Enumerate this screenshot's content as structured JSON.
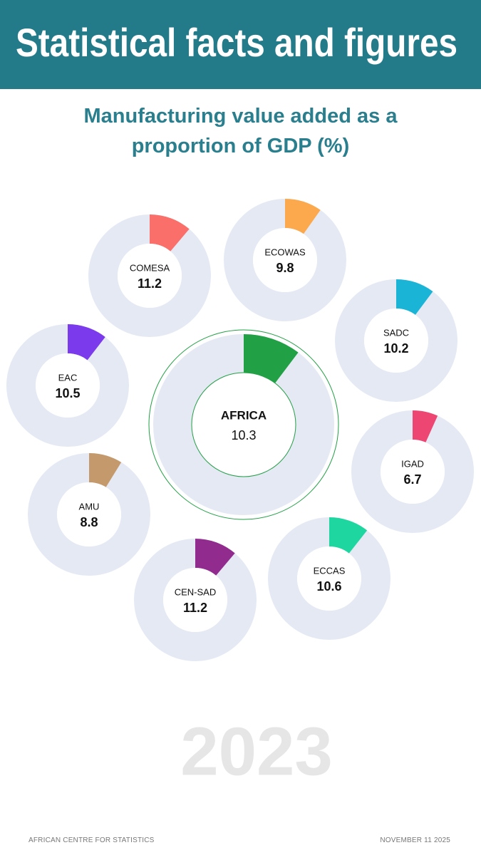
{
  "header": {
    "title": "Statistical facts and figures"
  },
  "chart_data": {
    "type": "donut",
    "subtitle": "Manufacturing value added as a proportion of GDP (%)",
    "categories": [
      "AFRICA",
      "COMESA",
      "ECOWAS",
      "SADC",
      "EAC",
      "IGAD",
      "AMU",
      "ECCAS",
      "CEN-SAD"
    ],
    "values": [
      10.3,
      11.2,
      9.8,
      10.2,
      10.5,
      6.7,
      8.8,
      10.6,
      11.2
    ],
    "colors": [
      "#22a045",
      "#fb6f6a",
      "#fba94c",
      "#1ab4d7",
      "#7c3aed",
      "#ee4672",
      "#c49a6c",
      "#1ed7a0",
      "#922b8e"
    ],
    "ylim": [
      0,
      100
    ],
    "year": "2023"
  },
  "footer": {
    "left": "AFRICAN CENTRE FOR STATISTICS",
    "right": "NOVEMBER 11 2025"
  }
}
